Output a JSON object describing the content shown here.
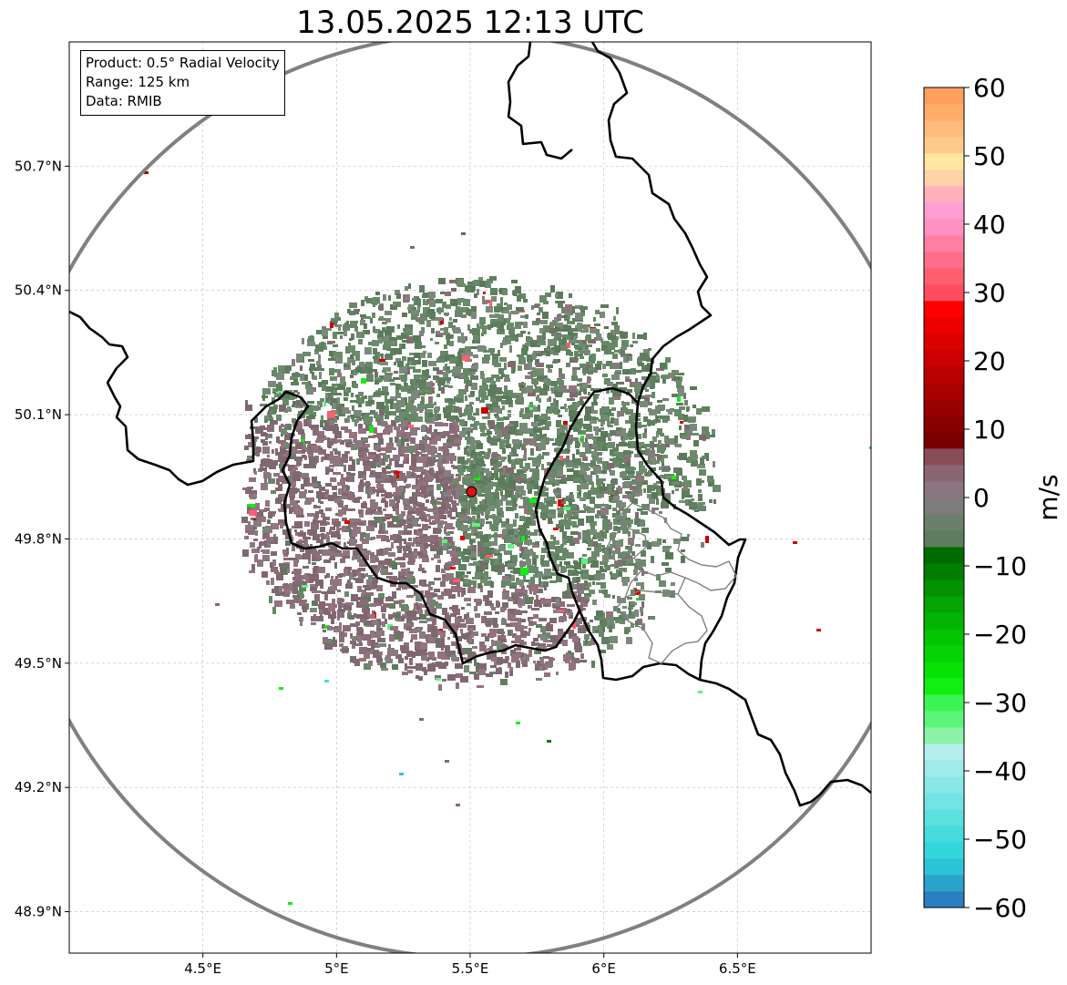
{
  "title": "13.05.2025 12:13 UTC",
  "info_box": {
    "line1": "Product: 0.5° Radial Velocity",
    "line2": "Range: 125 km",
    "line3": "Data: RMIB"
  },
  "map": {
    "lon_range": [
      4.0,
      7.0
    ],
    "lat_range": [
      48.8,
      51.0
    ],
    "x_ticks": [
      {
        "value": 4.5,
        "label": "4.5°E"
      },
      {
        "value": 5.0,
        "label": "5°E"
      },
      {
        "value": 5.5,
        "label": "5.5°E"
      },
      {
        "value": 6.0,
        "label": "6°E"
      },
      {
        "value": 6.5,
        "label": "6.5°E"
      }
    ],
    "y_ticks": [
      {
        "value": 48.9,
        "label": "48.9°N"
      },
      {
        "value": 49.2,
        "label": "49.2°N"
      },
      {
        "value": 49.5,
        "label": "49.5°N"
      },
      {
        "value": 49.8,
        "label": "49.8°N"
      },
      {
        "value": 50.1,
        "label": "50.1°N"
      },
      {
        "value": 50.4,
        "label": "50.4°N"
      },
      {
        "value": 50.7,
        "label": "50.7°N"
      }
    ],
    "radar_site": {
      "lon": 5.505,
      "lat": 49.914,
      "color": "#e01010"
    },
    "range_ring_color": "#808080",
    "border_color": "#000000",
    "admin_border_color": "#808080"
  },
  "colorbar": {
    "label": "m/s",
    "min": -60,
    "max": 60,
    "ticks": [
      60,
      50,
      40,
      30,
      20,
      10,
      0,
      -10,
      -20,
      -30,
      -40,
      -50,
      -60
    ],
    "tick_labels": [
      "60",
      "50",
      "40",
      "30",
      "20",
      "10",
      "0",
      "−10",
      "−20",
      "−30",
      "−40",
      "−50",
      "−60"
    ],
    "bands": [
      "#2a7fc0",
      "#2aa3cc",
      "#2ec4d8",
      "#33d6dd",
      "#46dbdd",
      "#5ce0e0",
      "#72e4e3",
      "#88e8e7",
      "#9eebea",
      "#b4efee",
      "#8cf2a8",
      "#5cf57a",
      "#3cf554",
      "#10ef10",
      "#06e206",
      "#05d305",
      "#04c404",
      "#04b404",
      "#03a403",
      "#029202",
      "#027e02",
      "#016b01",
      "#5f7c5f",
      "#6a806a",
      "#7c7c7c",
      "#8a7680",
      "#8a6672",
      "#884e58",
      "#7a0000",
      "#8a0000",
      "#990000",
      "#aa0000",
      "#bb0000",
      "#cc0000",
      "#dd0000",
      "#ee0000",
      "#ff0000",
      "#ff4d5f",
      "#ff5e70",
      "#ff6e88",
      "#ff80a5",
      "#ff90c2",
      "#ff9ed2",
      "#ffb0bd",
      "#ffd3a8",
      "#ffe7a0",
      "#ffcb8a",
      "#ffbc7a",
      "#ffad6a",
      "#ff9f5e"
    ]
  }
}
